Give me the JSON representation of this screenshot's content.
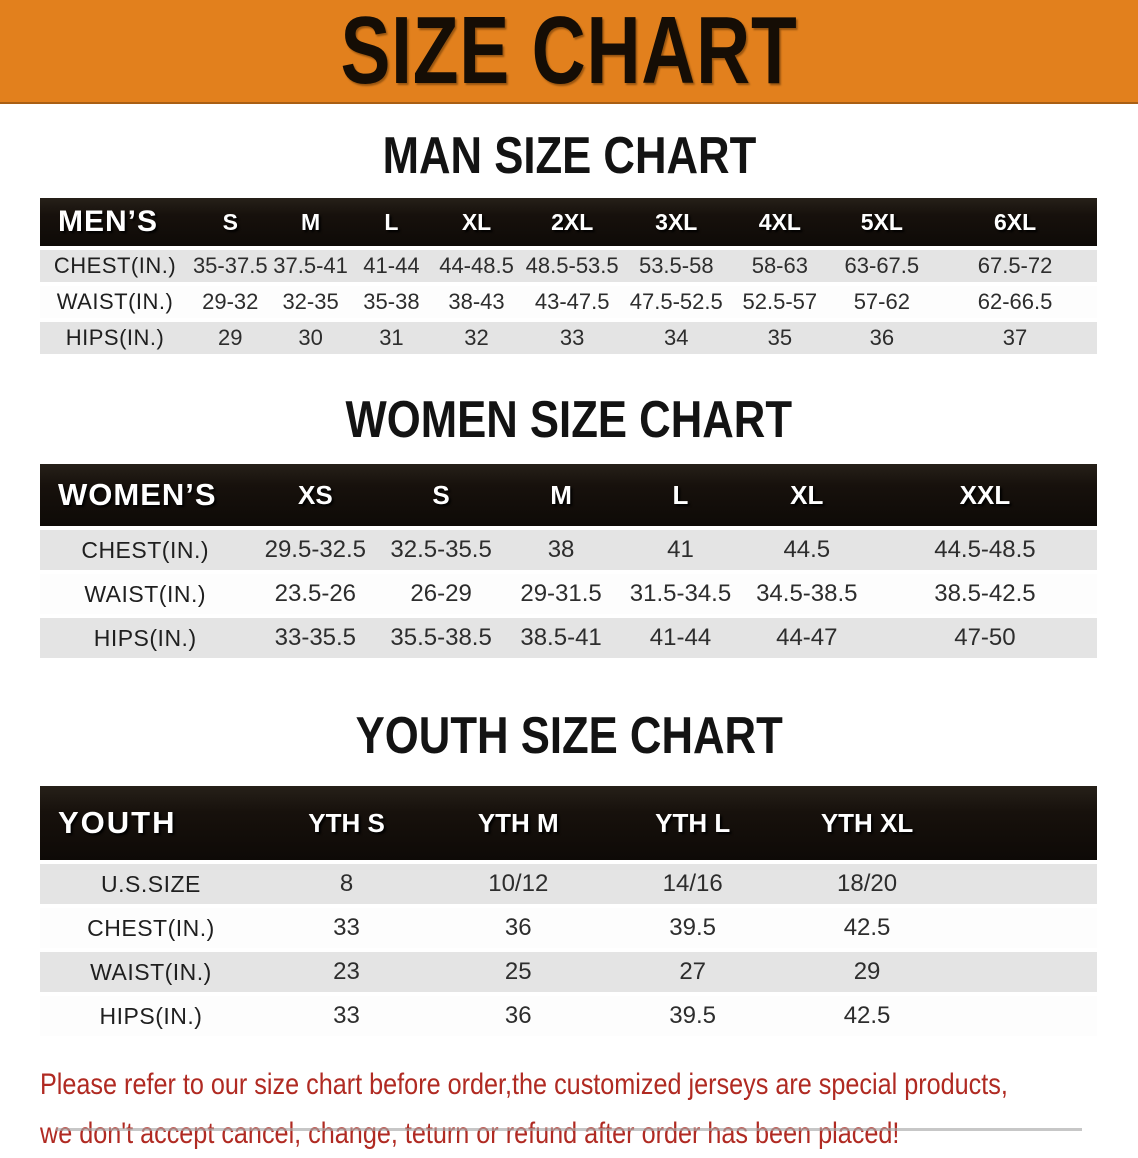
{
  "banner": {
    "title": "SIZE CHART"
  },
  "colors": {
    "banner_bg": "#e2801d",
    "banner_text": "#150d05",
    "header_bar": "#17110c",
    "stripe": "#e4e4e4",
    "note_red": "#b02a22"
  },
  "tables": [
    {
      "id": "men",
      "heading": "MAN SIZE CHART",
      "group_label": "MEN’S",
      "columns": [
        "S",
        "M",
        "L",
        "XL",
        "2XL",
        "3XL",
        "4XL",
        "5XL",
        "6XL"
      ],
      "rows": [
        {
          "label": "CHEST(IN.)",
          "values": [
            "35-37.5",
            "37.5-41",
            "41-44",
            "44-48.5",
            "48.5-53.5",
            "53.5-58",
            "58-63",
            "63-67.5",
            "67.5-72"
          ]
        },
        {
          "label": "WAIST(IN.)",
          "values": [
            "29-32",
            "32-35",
            "35-38",
            "38-43",
            "43-47.5",
            "47.5-52.5",
            "52.5-57",
            "57-62",
            "62-66.5"
          ]
        },
        {
          "label": "HIPS(IN.)",
          "values": [
            "29",
            "30",
            "31",
            "32",
            "33",
            "34",
            "35",
            "36",
            "37"
          ]
        }
      ]
    },
    {
      "id": "women",
      "heading": "WOMEN SIZE CHART",
      "group_label": "WOMEN’S",
      "columns": [
        "XS",
        "S",
        "M",
        "L",
        "XL",
        "XXL"
      ],
      "rows": [
        {
          "label": "CHEST(IN.)",
          "values": [
            "29.5-32.5",
            "32.5-35.5",
            "38",
            "41",
            "44.5",
            "44.5-48.5"
          ]
        },
        {
          "label": "WAIST(IN.)",
          "values": [
            "23.5-26",
            "26-29",
            "29-31.5",
            "31.5-34.5",
            "34.5-38.5",
            "38.5-42.5"
          ]
        },
        {
          "label": "HIPS(IN.)",
          "values": [
            "33-35.5",
            "35.5-38.5",
            "38.5-41",
            "41-44",
            "44-47",
            "47-50"
          ]
        }
      ]
    },
    {
      "id": "youth",
      "heading": "YOUTH SIZE CHART",
      "group_label": "YOUTH",
      "columns": [
        "YTH S",
        "YTH M",
        "YTH L",
        "YTH XL"
      ],
      "rows": [
        {
          "label": "U.S.SIZE",
          "values": [
            "8",
            "10/12",
            "14/16",
            "18/20"
          ]
        },
        {
          "label": "CHEST(IN.)",
          "values": [
            "33",
            "36",
            "39.5",
            "42.5"
          ]
        },
        {
          "label": "WAIST(IN.)",
          "values": [
            "23",
            "25",
            "27",
            "29"
          ]
        },
        {
          "label": "HIPS(IN.)",
          "values": [
            "33",
            "36",
            "39.5",
            "42.5"
          ]
        }
      ]
    }
  ],
  "note": {
    "line1": "Please refer to our size chart before order,the customized jerseys are special products,",
    "line2": "we don't accept cancel, change, teturn or refund after order has been placed!"
  }
}
